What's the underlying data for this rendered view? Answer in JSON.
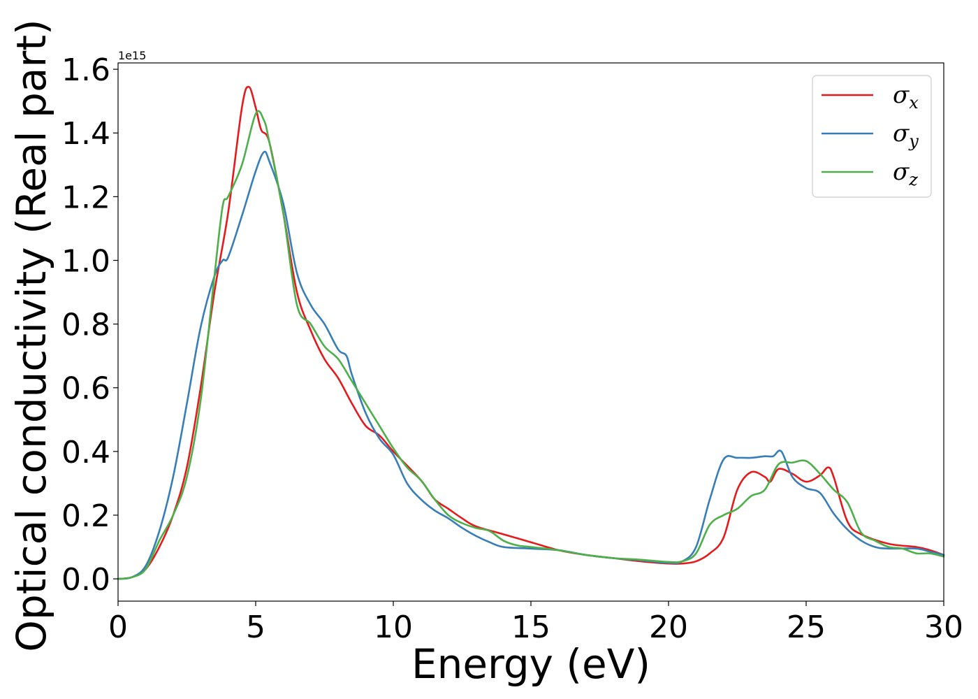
{
  "chart_data": {
    "type": "line",
    "title": "",
    "xlabel": "Energy (eV)",
    "ylabel": "Optical conductivity (Real part)",
    "y_offset_text": "1e15",
    "xlim": [
      0,
      30
    ],
    "ylim": [
      -0.07,
      1.62
    ],
    "x_ticks": [
      0,
      5,
      10,
      15,
      20,
      25,
      30
    ],
    "x_tick_labels": [
      "0",
      "5",
      "10",
      "15",
      "20",
      "25",
      "30"
    ],
    "y_ticks": [
      0.0,
      0.2,
      0.4,
      0.6,
      0.8,
      1.0,
      1.2,
      1.4,
      1.6
    ],
    "y_tick_labels": [
      "0.0",
      "0.2",
      "0.4",
      "0.6",
      "0.8",
      "1.0",
      "1.2",
      "1.4",
      "1.6"
    ],
    "grid": false,
    "legend_position": "top-right",
    "series": [
      {
        "name": "σx",
        "base": "σ",
        "sub": "x",
        "color": "#e41a1c",
        "points": [
          [
            0,
            0
          ],
          [
            0.5,
            0.005
          ],
          [
            1,
            0.03
          ],
          [
            1.5,
            0.1
          ],
          [
            2,
            0.2
          ],
          [
            2.5,
            0.35
          ],
          [
            3,
            0.6
          ],
          [
            3.5,
            0.9
          ],
          [
            4,
            1.15
          ],
          [
            4.5,
            1.48
          ],
          [
            4.75,
            1.545
          ],
          [
            5,
            1.48
          ],
          [
            5.2,
            1.41
          ],
          [
            5.5,
            1.37
          ],
          [
            6,
            1.15
          ],
          [
            6.5,
            0.9
          ],
          [
            7,
            0.78
          ],
          [
            7.5,
            0.69
          ],
          [
            8,
            0.63
          ],
          [
            8.5,
            0.55
          ],
          [
            9,
            0.48
          ],
          [
            9.5,
            0.45
          ],
          [
            10,
            0.4
          ],
          [
            11,
            0.31
          ],
          [
            11.5,
            0.25
          ],
          [
            12,
            0.22
          ],
          [
            12.5,
            0.19
          ],
          [
            13,
            0.165
          ],
          [
            14,
            0.14
          ],
          [
            15,
            0.115
          ],
          [
            16,
            0.09
          ],
          [
            17,
            0.075
          ],
          [
            18,
            0.065
          ],
          [
            19,
            0.055
          ],
          [
            20,
            0.048
          ],
          [
            20.5,
            0.048
          ],
          [
            21,
            0.055
          ],
          [
            21.5,
            0.08
          ],
          [
            22,
            0.13
          ],
          [
            22.5,
            0.28
          ],
          [
            23,
            0.335
          ],
          [
            23.5,
            0.32
          ],
          [
            23.7,
            0.305
          ],
          [
            24,
            0.345
          ],
          [
            24.5,
            0.33
          ],
          [
            25,
            0.305
          ],
          [
            25.5,
            0.325
          ],
          [
            25.8,
            0.35
          ],
          [
            26,
            0.32
          ],
          [
            26.5,
            0.18
          ],
          [
            27,
            0.14
          ],
          [
            28,
            0.11
          ],
          [
            29,
            0.1
          ],
          [
            29.5,
            0.09
          ],
          [
            30,
            0.075
          ]
        ]
      },
      {
        "name": "σy",
        "base": "σ",
        "sub": "y",
        "color": "#377eb8",
        "points": [
          [
            0,
            0
          ],
          [
            0.5,
            0.005
          ],
          [
            1,
            0.04
          ],
          [
            1.5,
            0.15
          ],
          [
            2,
            0.32
          ],
          [
            2.5,
            0.55
          ],
          [
            3,
            0.79
          ],
          [
            3.5,
            0.95
          ],
          [
            3.8,
            1.0
          ],
          [
            4,
            1.01
          ],
          [
            4.5,
            1.14
          ],
          [
            5,
            1.28
          ],
          [
            5.3,
            1.34
          ],
          [
            5.5,
            1.31
          ],
          [
            6,
            1.18
          ],
          [
            6.5,
            0.96
          ],
          [
            7,
            0.86
          ],
          [
            7.5,
            0.8
          ],
          [
            8,
            0.72
          ],
          [
            8.3,
            0.7
          ],
          [
            8.5,
            0.64
          ],
          [
            9,
            0.52
          ],
          [
            9.5,
            0.44
          ],
          [
            10,
            0.39
          ],
          [
            10.5,
            0.3
          ],
          [
            11,
            0.25
          ],
          [
            11.5,
            0.215
          ],
          [
            12,
            0.19
          ],
          [
            12.5,
            0.16
          ],
          [
            13,
            0.135
          ],
          [
            13.5,
            0.115
          ],
          [
            14,
            0.1
          ],
          [
            15,
            0.095
          ],
          [
            16,
            0.09
          ],
          [
            17,
            0.075
          ],
          [
            18,
            0.065
          ],
          [
            19,
            0.058
          ],
          [
            20,
            0.05
          ],
          [
            20.5,
            0.055
          ],
          [
            21,
            0.1
          ],
          [
            21.5,
            0.25
          ],
          [
            22,
            0.375
          ],
          [
            22.5,
            0.38
          ],
          [
            23,
            0.38
          ],
          [
            23.5,
            0.385
          ],
          [
            23.8,
            0.385
          ],
          [
            24.1,
            0.4
          ],
          [
            24.5,
            0.32
          ],
          [
            25,
            0.285
          ],
          [
            25.5,
            0.27
          ],
          [
            26,
            0.205
          ],
          [
            26.5,
            0.155
          ],
          [
            27,
            0.12
          ],
          [
            27.5,
            0.1
          ],
          [
            28,
            0.095
          ],
          [
            29,
            0.095
          ],
          [
            29.5,
            0.085
          ],
          [
            30,
            0.075
          ]
        ]
      },
      {
        "name": "σz",
        "base": "σ",
        "sub": "z",
        "color": "#4daf4a",
        "points": [
          [
            0,
            0
          ],
          [
            0.5,
            0.005
          ],
          [
            1,
            0.03
          ],
          [
            1.5,
            0.12
          ],
          [
            2,
            0.2
          ],
          [
            2.5,
            0.32
          ],
          [
            3,
            0.56
          ],
          [
            3.5,
            0.95
          ],
          [
            3.8,
            1.17
          ],
          [
            4,
            1.2
          ],
          [
            4.5,
            1.3
          ],
          [
            5,
            1.46
          ],
          [
            5.3,
            1.44
          ],
          [
            5.5,
            1.37
          ],
          [
            6,
            1.15
          ],
          [
            6.5,
            0.86
          ],
          [
            7,
            0.8
          ],
          [
            7.5,
            0.73
          ],
          [
            8,
            0.69
          ],
          [
            8.5,
            0.62
          ],
          [
            9,
            0.55
          ],
          [
            9.5,
            0.48
          ],
          [
            10,
            0.41
          ],
          [
            10.5,
            0.35
          ],
          [
            11,
            0.31
          ],
          [
            11.5,
            0.25
          ],
          [
            12,
            0.2
          ],
          [
            12.5,
            0.175
          ],
          [
            13,
            0.16
          ],
          [
            13.5,
            0.15
          ],
          [
            14,
            0.12
          ],
          [
            14.5,
            0.105
          ],
          [
            15,
            0.1
          ],
          [
            16,
            0.09
          ],
          [
            17,
            0.075
          ],
          [
            18,
            0.065
          ],
          [
            19,
            0.06
          ],
          [
            20,
            0.053
          ],
          [
            20.5,
            0.055
          ],
          [
            21,
            0.08
          ],
          [
            21.5,
            0.17
          ],
          [
            22,
            0.2
          ],
          [
            22.5,
            0.22
          ],
          [
            23,
            0.26
          ],
          [
            23.5,
            0.28
          ],
          [
            24,
            0.36
          ],
          [
            24.5,
            0.365
          ],
          [
            25,
            0.37
          ],
          [
            25.5,
            0.33
          ],
          [
            26,
            0.28
          ],
          [
            26.5,
            0.24
          ],
          [
            27,
            0.145
          ],
          [
            27.5,
            0.12
          ],
          [
            28,
            0.1
          ],
          [
            28.5,
            0.095
          ],
          [
            29,
            0.08
          ],
          [
            29.5,
            0.08
          ],
          [
            30,
            0.07
          ]
        ]
      }
    ]
  }
}
